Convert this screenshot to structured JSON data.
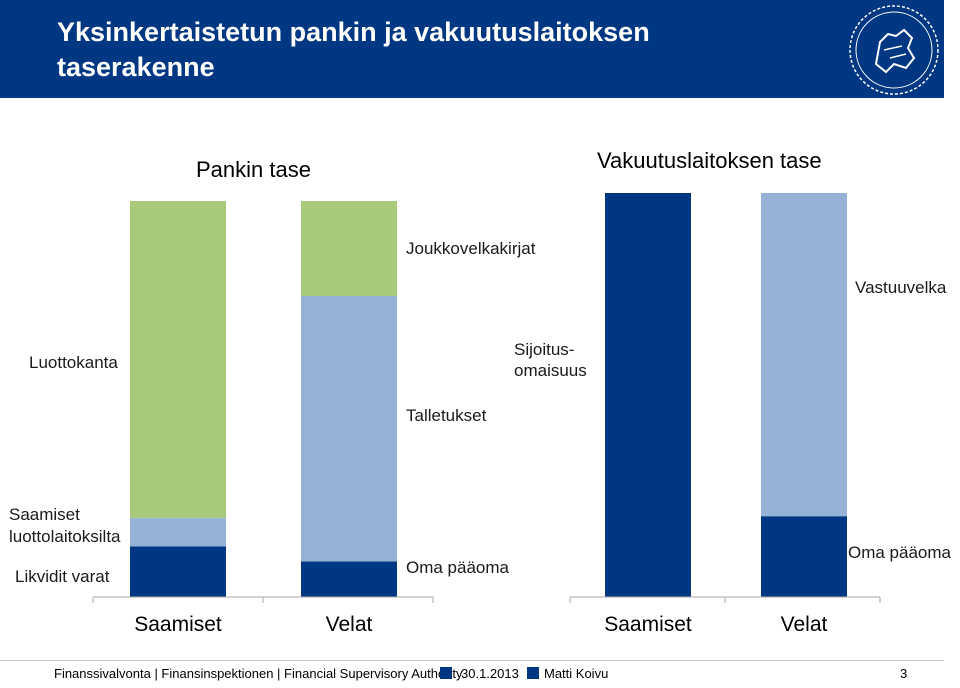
{
  "header": {
    "title": "Yksinkertaistetun pankin ja vakuutuslaitoksen taserakenne"
  },
  "colors": {
    "navy": "#003783",
    "light_blue": "#95B3D7",
    "green": "#A9C97A",
    "header_bg": "#003783"
  },
  "chart_data": [
    {
      "type": "bar",
      "stacked": true,
      "title": "Pankin tase",
      "categories": [
        "Saamiset",
        "Velat"
      ],
      "series": [
        {
          "label": "Likvidit varat",
          "color": "#003783",
          "values": [
            0.128,
            0
          ]
        },
        {
          "label": "Saamiset luottolaitoksilta",
          "color": "#95B3D7",
          "values": [
            0.072,
            0
          ]
        },
        {
          "label": "Luottokanta",
          "color": "#A9C97A",
          "values": [
            0.8,
            0
          ]
        },
        {
          "label": "Oma pääoma",
          "color": "#003783",
          "values": [
            0,
            0.09
          ]
        },
        {
          "label": "Talletukset",
          "color": "#95B3D7",
          "values": [
            0,
            0.67
          ]
        },
        {
          "label": "Joukkovelkakirjat",
          "color": "#A9C97A",
          "values": [
            0,
            0.24
          ]
        }
      ],
      "ylim": [
        0,
        1
      ]
    },
    {
      "type": "bar",
      "stacked": true,
      "title": "Vakuutuslaitoksen tase",
      "categories": [
        "Saamiset",
        "Velat"
      ],
      "series": [
        {
          "label": "Sijoitusomaisuus",
          "color": "#003783",
          "values": [
            1.0,
            0
          ]
        },
        {
          "label": "Oma pääoma",
          "color": "#003783",
          "values": [
            0,
            0.2
          ]
        },
        {
          "label": "Vastuuvelka",
          "color": "#95B3D7",
          "values": [
            0,
            0.8
          ]
        }
      ],
      "ylim": [
        0,
        1
      ]
    }
  ],
  "labels": {
    "luottokanta": "Luottokanta",
    "saamiset_luotto_1": "Saamiset",
    "saamiset_luotto_2": "luottolaitoksilta",
    "likvidit": "Likvidit varat",
    "joukkovelka": "Joukkovelkakirjat",
    "talletukset": "Talletukset",
    "oma_paaoma_bank": "Oma pääoma",
    "sijoitus_1": "Sijoitus-",
    "sijoitus_2": "omaisuus",
    "vastuuvelka": "Vastuuvelka",
    "oma_paaoma_ins": "Oma pääoma"
  },
  "footer": {
    "org": "Finanssivalvonta | Finansinspektionen | Financial Supervisory Authority",
    "date": "30.1.2013",
    "author": "Matti Koivu",
    "page": "3"
  }
}
